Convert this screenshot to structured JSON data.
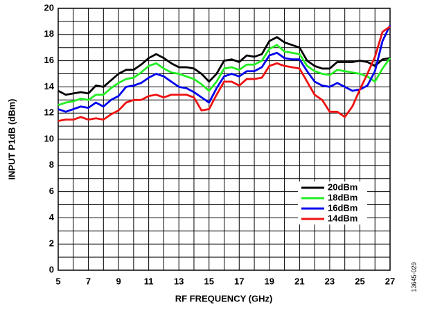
{
  "chart_data": {
    "type": "line",
    "xlabel": "RF FREQUENCY (GHz)",
    "ylabel": "INPUT P1dB (dBm)",
    "figure_id": "13645-029",
    "x": [
      5,
      5.5,
      6,
      6.5,
      7,
      7.5,
      8,
      8.5,
      9,
      9.5,
      10,
      10.5,
      11,
      11.5,
      12,
      12.5,
      13,
      13.5,
      14,
      14.5,
      15,
      15.5,
      16,
      16.5,
      17,
      17.5,
      18,
      18.5,
      19,
      19.5,
      20,
      20.5,
      21,
      21.5,
      22,
      22.5,
      23,
      23.5,
      24,
      24.5,
      25,
      25.5,
      26,
      26.5,
      27
    ],
    "series": [
      {
        "name": "20dBm",
        "color": "#000000",
        "values": [
          13.7,
          13.4,
          13.5,
          13.6,
          13.5,
          14.1,
          14.0,
          14.5,
          15.0,
          15.3,
          15.3,
          15.7,
          16.2,
          16.5,
          16.2,
          15.8,
          15.5,
          15.5,
          15.4,
          15.0,
          14.4,
          15.0,
          16.0,
          16.1,
          15.9,
          16.4,
          16.3,
          16.5,
          17.5,
          17.8,
          17.4,
          17.2,
          17.0,
          16.0,
          15.6,
          15.4,
          15.4,
          15.9,
          15.9,
          15.9,
          16.0,
          15.9,
          15.6,
          16.1,
          16.2
        ]
      },
      {
        "name": "18dBm",
        "color": "#22ee22",
        "values": [
          12.6,
          12.8,
          12.9,
          13.1,
          13.0,
          13.4,
          13.4,
          13.9,
          14.3,
          14.6,
          14.7,
          15.1,
          15.6,
          15.8,
          15.4,
          15.1,
          15.0,
          14.8,
          14.6,
          14.2,
          13.7,
          14.4,
          15.4,
          15.5,
          15.3,
          15.7,
          15.7,
          16.0,
          16.9,
          17.2,
          16.7,
          16.6,
          16.5,
          15.6,
          15.2,
          15.0,
          14.9,
          15.3,
          15.2,
          15.1,
          15.0,
          14.8,
          14.4,
          15.4,
          16.2
        ]
      },
      {
        "name": "16dBm",
        "color": "#0000ee",
        "values": [
          12.3,
          12.1,
          12.3,
          12.5,
          12.4,
          12.8,
          12.5,
          13.0,
          13.3,
          14.0,
          14.1,
          14.3,
          14.7,
          15.0,
          14.8,
          14.4,
          14.0,
          13.9,
          13.6,
          13.2,
          12.8,
          13.9,
          14.8,
          15.0,
          14.8,
          15.2,
          15.2,
          15.5,
          16.4,
          16.6,
          16.2,
          16.1,
          16.1,
          15.2,
          14.4,
          14.1,
          14.0,
          14.3,
          14.0,
          13.7,
          13.8,
          14.1,
          15.2,
          17.5,
          18.7
        ]
      },
      {
        "name": "14dBm",
        "color": "#ee1111",
        "values": [
          11.4,
          11.5,
          11.5,
          11.7,
          11.5,
          11.6,
          11.5,
          11.9,
          12.2,
          12.8,
          13.0,
          13.0,
          13.3,
          13.4,
          13.2,
          13.4,
          13.4,
          13.4,
          13.2,
          12.2,
          12.3,
          13.4,
          14.4,
          14.4,
          14.1,
          14.6,
          14.6,
          14.7,
          15.6,
          15.8,
          15.6,
          15.5,
          15.4,
          14.4,
          13.4,
          13.0,
          12.1,
          12.1,
          11.7,
          12.5,
          13.8,
          15.0,
          16.3,
          18.2,
          18.6
        ]
      }
    ],
    "xlim": [
      5,
      27
    ],
    "xticks": [
      5,
      7,
      9,
      11,
      13,
      15,
      17,
      19,
      21,
      23,
      25,
      27
    ],
    "x_minor_grid": [
      6,
      8,
      10,
      12,
      14,
      16,
      18,
      20,
      22,
      24,
      26
    ],
    "ylim": [
      0,
      20
    ],
    "yticks": [
      0,
      2,
      4,
      6,
      8,
      10,
      12,
      14,
      16,
      18,
      20
    ],
    "y_minor_grid": [
      1,
      3,
      5,
      7,
      9,
      11,
      13,
      15,
      17,
      19
    ],
    "grid": true,
    "legend": "lower right"
  }
}
